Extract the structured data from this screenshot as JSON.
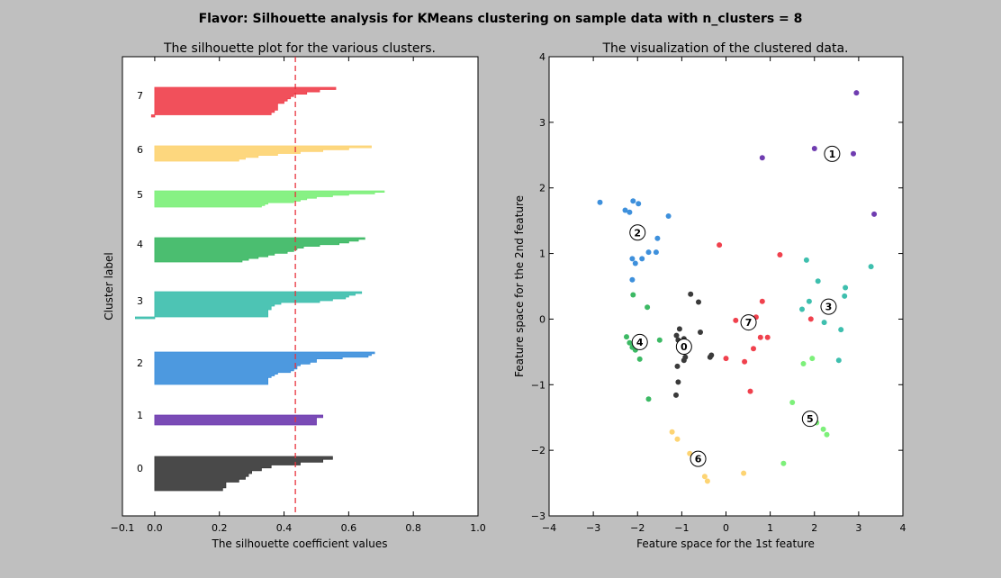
{
  "figure": {
    "suptitle": "Flavor: Silhouette analysis for KMeans clustering on sample data with n_clusters = 8"
  },
  "chart_data": [
    {
      "type": "area",
      "title": "The silhouette plot for the various clusters.",
      "xlabel": "The silhouette coefficient values",
      "ylabel": "Cluster label",
      "xlim": [
        -0.1,
        1.0
      ],
      "xticks": [
        -0.1,
        0.0,
        0.2,
        0.4,
        0.6,
        0.8,
        1.0
      ],
      "xtick_labels": [
        "−0.1",
        "0.0",
        "0.2",
        "0.4",
        "0.6",
        "0.8",
        "1.0"
      ],
      "average_silhouette_score": 0.435,
      "cluster_labels": [
        "0",
        "1",
        "2",
        "3",
        "4",
        "5",
        "6",
        "7"
      ],
      "clusters": [
        {
          "label": "0",
          "color": "#3a3a3a",
          "widths": [
            0.55,
            0.52,
            0.45,
            0.36,
            0.33,
            0.3,
            0.29,
            0.28,
            0.26,
            0.22,
            0.22,
            0.21
          ]
        },
        {
          "label": "1",
          "color": "#6f3cb0",
          "widths": [
            0.52,
            0.5,
            0.5,
            0.5
          ]
        },
        {
          "label": "2",
          "color": "#3e90dc",
          "widths": [
            0.68,
            0.67,
            0.66,
            0.58,
            0.5,
            0.5,
            0.48,
            0.45,
            0.44,
            0.44,
            0.43,
            0.42,
            0.38,
            0.37,
            0.36,
            0.35,
            0.35,
            0.35,
            0.35
          ]
        },
        {
          "label": "3",
          "color": "#3ebfae",
          "widths": [
            0.64,
            0.62,
            0.6,
            0.59,
            0.55,
            0.51,
            0.39,
            0.37,
            0.36,
            0.36,
            0.35,
            0.35,
            0.35,
            0.35,
            -0.06
          ]
        },
        {
          "label": "4",
          "color": "#3cb964",
          "widths": [
            0.65,
            0.63,
            0.6,
            0.57,
            0.51,
            0.46,
            0.44,
            0.43,
            0.41,
            0.37,
            0.35,
            0.32,
            0.29,
            0.27
          ]
        },
        {
          "label": "5",
          "color": "#7df07a",
          "widths": [
            0.71,
            0.68,
            0.6,
            0.55,
            0.5,
            0.47,
            0.45,
            0.43,
            0.35,
            0.34,
            0.33
          ]
        },
        {
          "label": "6",
          "color": "#fdd473",
          "widths": [
            0.67,
            0.6,
            0.52,
            0.45,
            0.38,
            0.32,
            0.28,
            0.26
          ]
        },
        {
          "label": "7",
          "color": "#f0414d",
          "widths": [
            0.56,
            0.51,
            0.47,
            0.43,
            0.42,
            0.41,
            0.4,
            0.38,
            0.38,
            0.38,
            0.37,
            0.36,
            -0.01
          ]
        }
      ]
    },
    {
      "type": "scatter",
      "title": "The visualization of the clustered data.",
      "xlabel": "Feature space for the 1st feature",
      "ylabel": "Feature space for the 2nd feature",
      "xlim": [
        -4,
        4
      ],
      "ylim": [
        -3,
        4
      ],
      "xticks": [
        -4,
        -3,
        -2,
        -1,
        0,
        1,
        2,
        3,
        4
      ],
      "yticks": [
        -3,
        -2,
        -1,
        0,
        1,
        2,
        3,
        4
      ],
      "xtick_labels": [
        "−4",
        "−3",
        "−2",
        "−1",
        "0",
        "1",
        "2",
        "3",
        "4"
      ],
      "ytick_labels": [
        "−3",
        "−2",
        "−1",
        "0",
        "1",
        "2",
        "3",
        "4"
      ],
      "series": [
        {
          "cluster": "0",
          "color": "#3a3a3a",
          "center": [
            -0.95,
            -0.42
          ],
          "points": [
            [
              -0.8,
              0.38
            ],
            [
              -0.62,
              0.26
            ],
            [
              -1.12,
              -0.25
            ],
            [
              -1.05,
              -0.15
            ],
            [
              -0.95,
              -0.3
            ],
            [
              -1.08,
              -0.32
            ],
            [
              -0.92,
              -0.58
            ],
            [
              -0.95,
              -0.63
            ],
            [
              -1.1,
              -0.72
            ],
            [
              -0.58,
              -0.2
            ],
            [
              -0.36,
              -0.58
            ],
            [
              -0.33,
              -0.55
            ],
            [
              -1.08,
              -0.96
            ],
            [
              -1.13,
              -1.16
            ]
          ]
        },
        {
          "cluster": "1",
          "color": "#6f3cb0",
          "center": [
            2.4,
            2.52
          ],
          "points": [
            [
              2.95,
              3.45
            ],
            [
              2.0,
              2.6
            ],
            [
              2.88,
              2.52
            ],
            [
              0.82,
              2.46
            ],
            [
              3.35,
              1.6
            ]
          ]
        },
        {
          "cluster": "2",
          "color": "#3e90dc",
          "center": [
            -2.0,
            1.32
          ],
          "points": [
            [
              -2.85,
              1.78
            ],
            [
              -2.1,
              1.8
            ],
            [
              -1.98,
              1.76
            ],
            [
              -2.28,
              1.66
            ],
            [
              -2.18,
              1.63
            ],
            [
              -1.3,
              1.57
            ],
            [
              -1.55,
              1.23
            ],
            [
              -1.75,
              1.02
            ],
            [
              -1.58,
              1.02
            ],
            [
              -2.12,
              0.92
            ],
            [
              -2.05,
              0.85
            ],
            [
              -1.9,
              0.92
            ],
            [
              -2.12,
              0.6
            ]
          ]
        },
        {
          "cluster": "3",
          "color": "#3ebfae",
          "center": [
            2.32,
            0.19
          ],
          "points": [
            [
              3.28,
              0.8
            ],
            [
              1.82,
              0.9
            ],
            [
              2.08,
              0.58
            ],
            [
              2.7,
              0.48
            ],
            [
              2.68,
              0.35
            ],
            [
              1.88,
              0.27
            ],
            [
              1.72,
              0.15
            ],
            [
              2.22,
              -0.05
            ],
            [
              2.6,
              -0.16
            ],
            [
              2.55,
              -0.63
            ]
          ]
        },
        {
          "cluster": "4",
          "color": "#3cb964",
          "center": [
            -1.95,
            -0.35
          ],
          "points": [
            [
              -2.1,
              0.37
            ],
            [
              -1.78,
              0.18
            ],
            [
              -2.25,
              -0.27
            ],
            [
              -2.18,
              -0.36
            ],
            [
              -2.08,
              -0.37
            ],
            [
              -1.92,
              -0.28
            ],
            [
              -1.5,
              -0.32
            ],
            [
              -2.12,
              -0.43
            ],
            [
              -2.05,
              -0.47
            ],
            [
              -1.95,
              -0.61
            ],
            [
              -1.75,
              -1.22
            ]
          ]
        },
        {
          "cluster": "5",
          "color": "#7df07a",
          "center": [
            1.9,
            -1.52
          ],
          "points": [
            [
              1.75,
              -0.68
            ],
            [
              1.95,
              -0.6
            ],
            [
              1.5,
              -1.27
            ],
            [
              2.05,
              -1.58
            ],
            [
              2.2,
              -1.68
            ],
            [
              2.28,
              -1.76
            ],
            [
              1.3,
              -2.2
            ]
          ]
        },
        {
          "cluster": "6",
          "color": "#fdd473",
          "center": [
            -0.63,
            -2.13
          ],
          "points": [
            [
              -1.22,
              -1.72
            ],
            [
              -1.1,
              -1.83
            ],
            [
              -0.82,
              -2.05
            ],
            [
              -0.48,
              -2.4
            ],
            [
              -0.42,
              -2.47
            ],
            [
              0.4,
              -2.35
            ]
          ]
        },
        {
          "cluster": "7",
          "color": "#f0414d",
          "center": [
            0.51,
            -0.05
          ],
          "points": [
            [
              -0.15,
              1.13
            ],
            [
              1.22,
              0.98
            ],
            [
              0.82,
              0.27
            ],
            [
              0.68,
              0.03
            ],
            [
              0.22,
              -0.02
            ],
            [
              0.42,
              -0.02
            ],
            [
              1.92,
              0.0
            ],
            [
              0.78,
              -0.28
            ],
            [
              0.94,
              -0.28
            ],
            [
              0.62,
              -0.45
            ],
            [
              0.0,
              -0.6
            ],
            [
              0.42,
              -0.65
            ],
            [
              0.55,
              -1.1
            ]
          ]
        }
      ]
    }
  ]
}
